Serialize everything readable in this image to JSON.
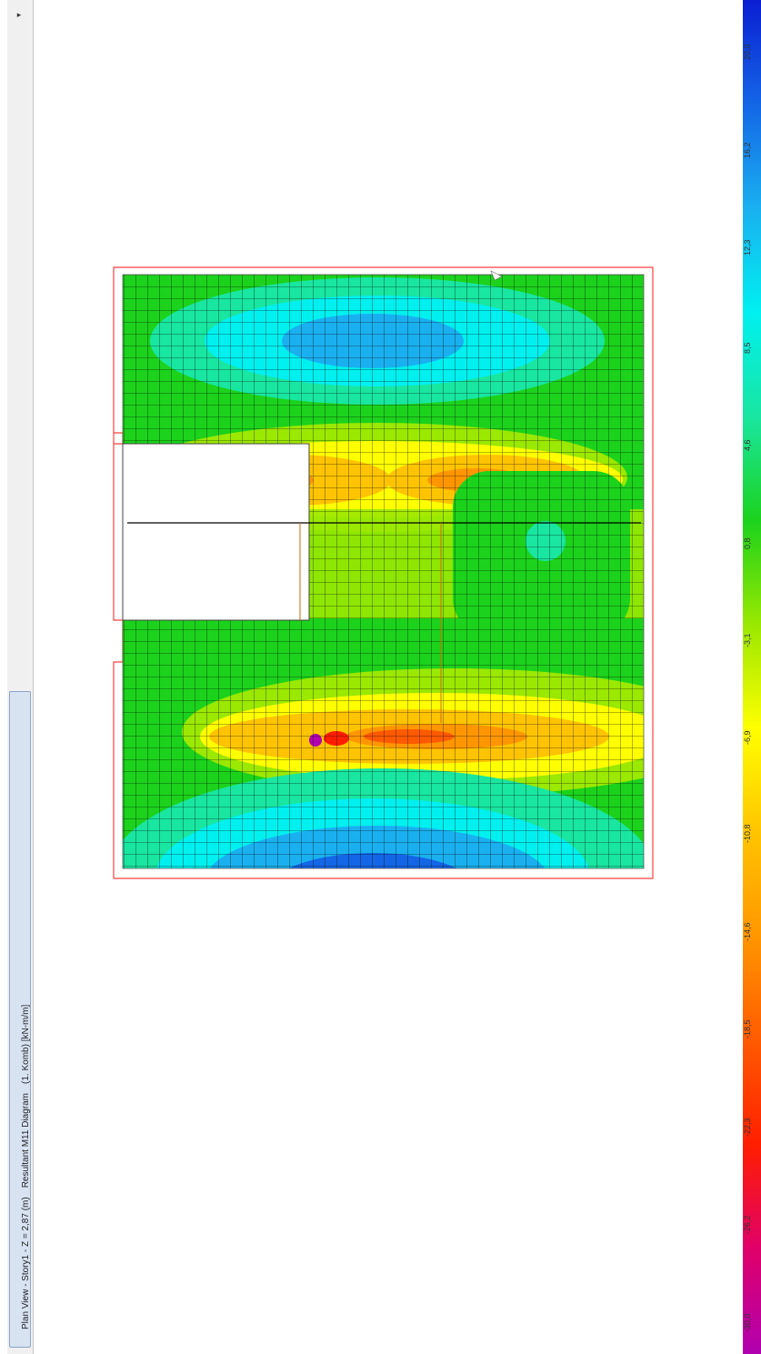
{
  "window": {
    "title_parts": [
      "Plan View - Story1 - Z = 2,87 (m)",
      "Resultant M11 Diagram",
      "(1. Komb)  [kN-m/m]"
    ]
  },
  "legend": {
    "labels": [
      "-30,0",
      "-26,2",
      "-22,3",
      "-18,5",
      "-14,6",
      "-10,8",
      "-6,9",
      "-3,1",
      "0,8",
      "4,6",
      "8,5",
      "12,3",
      "16,2",
      "20,0"
    ],
    "colors": [
      "#b000b0",
      "#e0006a",
      "#ff1e00",
      "#ff5a00",
      "#ff9600",
      "#ffc400",
      "#ffff00",
      "#9be800",
      "#1cd21c",
      "#19e6a0",
      "#00f0f0",
      "#1ab0f0",
      "#1466e6",
      "#0a1ed2"
    ]
  },
  "plot": {
    "grid_color": "#000000",
    "outline_color": "#ff4040"
  }
}
